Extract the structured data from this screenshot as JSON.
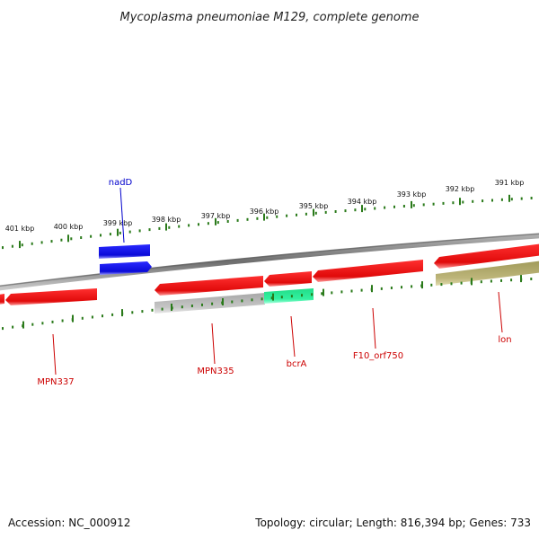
{
  "header": {
    "title": "Mycoplasma pneumoniae M129, complete genome"
  },
  "footer": {
    "accession": "Accession: NC_000912",
    "summary": "Topology: circular; Length: 816,394 bp; Genes: 733"
  },
  "colors": {
    "backbone": "#8a8a8a",
    "tick": "#2a7a1a",
    "forward_gene": "#e81010",
    "blue_gene": "#1010e0",
    "grey_gene": "#bcbcbc",
    "teal_gene": "#33ee99",
    "olive_gene": "#b8b070",
    "label_red": "#cc0000",
    "label_blue": "#0000cc"
  },
  "ticks": {
    "outer": [
      {
        "label": "391 kbp"
      },
      {
        "label": "392 kbp"
      },
      {
        "label": "393 kbp"
      },
      {
        "label": "394 kbp"
      },
      {
        "label": "395 kbp"
      },
      {
        "label": "396 kbp"
      },
      {
        "label": "397 kbp"
      },
      {
        "label": "398 kbp"
      },
      {
        "label": "399 kbp"
      },
      {
        "label": "400 kbp"
      },
      {
        "label": "401 kbp"
      }
    ]
  },
  "genes": {
    "labels": [
      {
        "name": "nadD",
        "color": "label_blue"
      },
      {
        "name": "MPN337",
        "color": "label_red"
      },
      {
        "name": "MPN335",
        "color": "label_red"
      },
      {
        "name": "bcrA",
        "color": "label_red"
      },
      {
        "name": "F10_orf750",
        "color": "label_red"
      },
      {
        "name": "lon",
        "color": "label_red"
      }
    ]
  }
}
